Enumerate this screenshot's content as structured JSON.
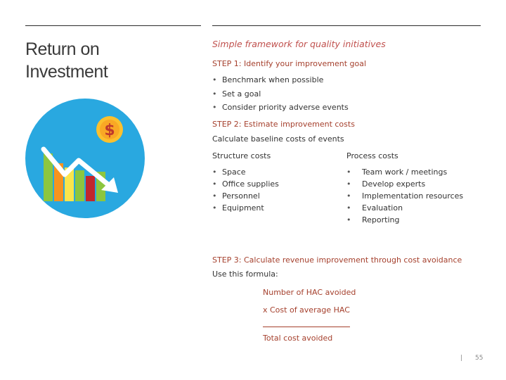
{
  "title": "Return on Investment",
  "subtitle": "Simple framework for quality initiatives",
  "step1": {
    "heading": "STEP 1: Identify your improvement goal",
    "bullets": [
      "Benchmark when possible",
      "Set a goal",
      "Consider priority adverse events"
    ]
  },
  "step2": {
    "heading": "STEP 2: Estimate improvement costs",
    "intro": "Calculate baseline costs of events",
    "structure": {
      "header": "Structure costs",
      "items": [
        "Space",
        "Office supplies",
        "Personnel",
        "Equipment"
      ]
    },
    "process": {
      "header": "Process costs",
      "items": [
        "Team work / meetings",
        "Develop experts",
        "Implementation resources",
        "Evaluation",
        "Reporting"
      ]
    }
  },
  "step3": {
    "heading": "STEP 3: Calculate revenue improvement through cost avoidance",
    "intro": "Use this formula:",
    "line1": "Number of HAC avoided",
    "line2": "x Cost of average HAC",
    "result": "Total cost avoided"
  },
  "footer": {
    "separator": "|",
    "page_number": "55"
  },
  "icon": {
    "name": "roi-chart-icon",
    "symbol": "$",
    "circle_color": "#29a8e0"
  }
}
